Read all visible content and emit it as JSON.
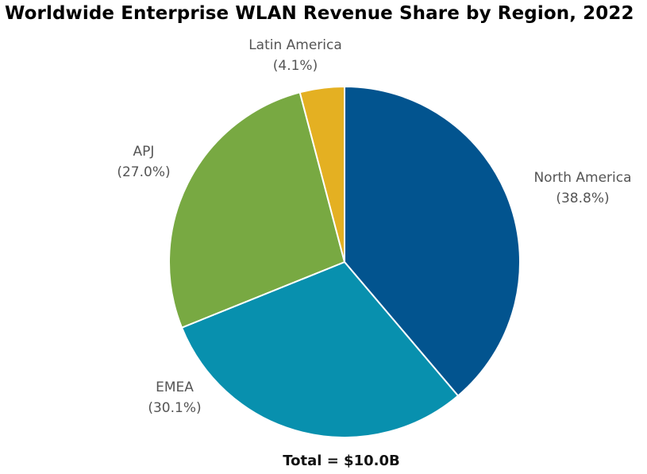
{
  "chart_data": {
    "type": "pie",
    "title": "Worldwide Enterprise WLAN Revenue Share by Region, 2022",
    "slices": [
      {
        "label": "North America",
        "value": 38.8,
        "display": "(38.8%)",
        "color": "#02548f"
      },
      {
        "label": "EMEA",
        "value": 30.1,
        "display": "(30.1%)",
        "color": "#0890ae"
      },
      {
        "label": "APJ",
        "value": 27.0,
        "display": "(27.0%)",
        "color": "#78a942"
      },
      {
        "label": "Latin America",
        "value": 4.1,
        "display": "(4.1%)",
        "color": "#e4b022"
      }
    ],
    "start_angle_deg": 0,
    "direction": "clockwise",
    "footer": "Total = $10.0B"
  }
}
